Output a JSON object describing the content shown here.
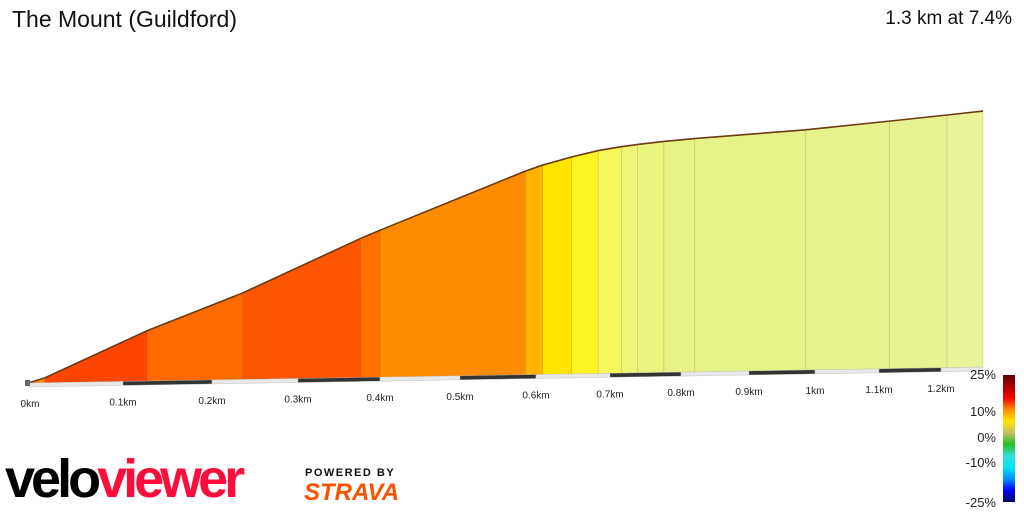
{
  "header": {
    "title": "The Mount (Guildford)",
    "summary": "1.3 km at 7.4%"
  },
  "chart_data": {
    "type": "area",
    "title": "The Mount (Guildford)",
    "xlabel": "",
    "ylabel": "",
    "x_ticks": [
      "0km",
      "0.1km",
      "0.2km",
      "0.3km",
      "0.4km",
      "0.5km",
      "0.6km",
      "0.7km",
      "0.8km",
      "0.9km",
      "1km",
      "1.1km",
      "1.2km"
    ],
    "xlim_km": [
      0,
      1.27
    ],
    "segments": [
      {
        "from_km": 0.0,
        "to_km": 0.018,
        "gradient_pct": 10,
        "color": "#ff8800"
      },
      {
        "from_km": 0.018,
        "to_km": 0.127,
        "gradient_pct": 15,
        "color": "#ff4500"
      },
      {
        "from_km": 0.127,
        "to_km": 0.236,
        "gradient_pct": 12,
        "color": "#ff6a00"
      },
      {
        "from_km": 0.236,
        "to_km": 0.377,
        "gradient_pct": 13.5,
        "color": "#ff5500"
      },
      {
        "from_km": 0.377,
        "to_km": 0.4,
        "gradient_pct": 12,
        "color": "#ff7000"
      },
      {
        "from_km": 0.4,
        "to_km": 0.586,
        "gradient_pct": 11,
        "color": "#ff8c00"
      },
      {
        "from_km": 0.586,
        "to_km": 0.609,
        "gradient_pct": 9,
        "color": "#ffb300"
      },
      {
        "from_km": 0.609,
        "to_km": 0.648,
        "gradient_pct": 7,
        "color": "#ffe400"
      },
      {
        "from_km": 0.648,
        "to_km": 0.684,
        "gradient_pct": 6,
        "color": "#fdf523"
      },
      {
        "from_km": 0.684,
        "to_km": 0.716,
        "gradient_pct": 4,
        "color": "#f5f75c"
      },
      {
        "from_km": 0.716,
        "to_km": 0.739,
        "gradient_pct": 3,
        "color": "#eef676"
      },
      {
        "from_km": 0.739,
        "to_km": 0.776,
        "gradient_pct": 2.5,
        "color": "#eaf57e"
      },
      {
        "from_km": 0.776,
        "to_km": 0.82,
        "gradient_pct": 2,
        "color": "#e8f487"
      },
      {
        "from_km": 0.82,
        "to_km": 0.986,
        "gradient_pct": 1.5,
        "color": "#e6f38b"
      },
      {
        "from_km": 0.986,
        "to_km": 1.117,
        "gradient_pct": 2,
        "color": "#e6f28e"
      },
      {
        "from_km": 1.117,
        "to_km": 1.21,
        "gradient_pct": 2,
        "color": "#e7f292"
      },
      {
        "from_km": 1.21,
        "to_km": 1.27,
        "gradient_pct": 2,
        "color": "#e8f39a"
      }
    ],
    "legend": {
      "labels": [
        "25%",
        "10%",
        "0%",
        "-10%",
        "-25%"
      ],
      "gradient_stops": [
        "#5a0000",
        "#b00000",
        "#ff0000",
        "#ff8c00",
        "#ffe600",
        "#c8c060",
        "#22c022",
        "#33dddd",
        "#00e5f0",
        "#0090ff",
        "#0000ff",
        "#000060"
      ]
    }
  },
  "branding": {
    "logo_velo": "velo",
    "logo_viewer": "viewer",
    "powered_by": "POWERED BY",
    "strava": "STRAVA"
  }
}
